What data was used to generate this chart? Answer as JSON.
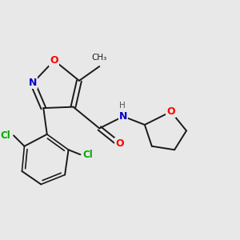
{
  "background_color": "#e8e8e8",
  "bond_color": "#1a1a1a",
  "atom_colors": {
    "O": "#ff0000",
    "N": "#0000cd",
    "Cl": "#00aa00",
    "C": "#1a1a1a",
    "H": "#555555"
  },
  "figsize": [
    3.0,
    3.0
  ],
  "dpi": 100,
  "xlim": [
    0,
    10
  ],
  "ylim": [
    0,
    10
  ]
}
